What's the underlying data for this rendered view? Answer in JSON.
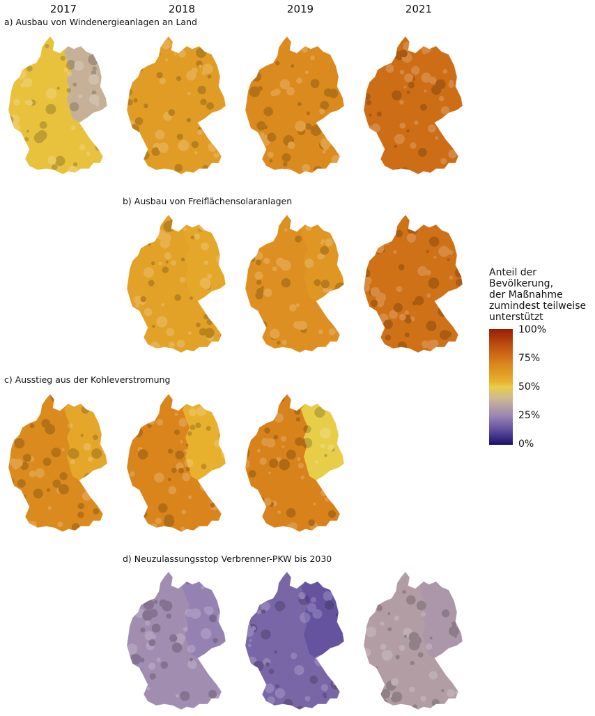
{
  "years": [
    "2017",
    "2018",
    "2019",
    "2021"
  ],
  "panels": [
    {
      "id": "a",
      "title": "a) Ausbau von Windenergieanlagen an Land",
      "maps": [
        {
          "year": "2017",
          "share": 0.52,
          "east_share": 0.38
        },
        {
          "year": "2018",
          "share": 0.62,
          "east_share": 0.62
        },
        {
          "year": "2019",
          "share": 0.68,
          "east_share": 0.68
        },
        {
          "year": "2021",
          "share": 0.77,
          "east_share": 0.77
        }
      ]
    },
    {
      "id": "b",
      "title": "b) Ausbau von Freiflächensolaranlagen",
      "maps": [
        {
          "year": "2018",
          "share": 0.6,
          "east_share": 0.58
        },
        {
          "year": "2019",
          "share": 0.66,
          "east_share": 0.64
        },
        {
          "year": "2021",
          "share": 0.76,
          "east_share": 0.76
        }
      ]
    },
    {
      "id": "c",
      "title": "c) Ausstieg aus der Kohleverstromung",
      "maps": [
        {
          "year": "2017",
          "share": 0.68,
          "east_share": 0.58
        },
        {
          "year": "2018",
          "share": 0.7,
          "east_share": 0.55
        },
        {
          "year": "2019",
          "share": 0.71,
          "east_share": 0.5
        }
      ]
    },
    {
      "id": "d",
      "title": "d) Neuzulassungsstop Verbrenner-PKW bis 2030",
      "maps": [
        {
          "year": "2018",
          "share": 0.27,
          "east_share": 0.24
        },
        {
          "year": "2019",
          "share": 0.18,
          "east_share": 0.14
        },
        {
          "year": "2021",
          "share": 0.32,
          "east_share": 0.3
        }
      ]
    }
  ],
  "legend": {
    "title_lines": [
      "Anteil der",
      "Bevölkerung,",
      "der Maßnahme",
      "zumindest teilweise",
      "unterstützt"
    ],
    "labels": [
      "100%",
      "75%",
      "50%",
      "25%",
      "0%"
    ]
  }
}
